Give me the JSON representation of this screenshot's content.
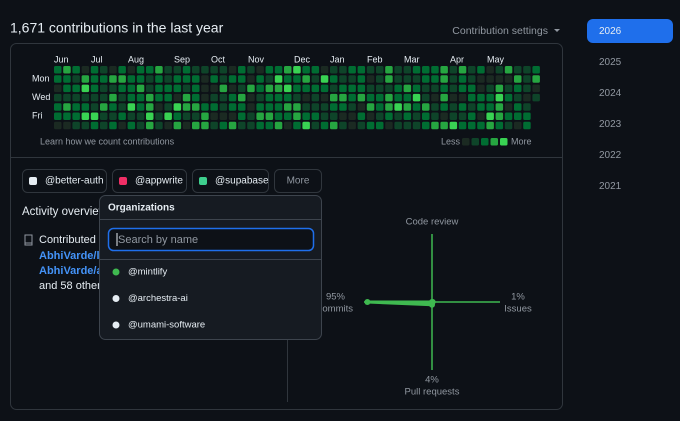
{
  "header": {
    "title": "1,671 contributions in the last year",
    "settings": "Contribution settings"
  },
  "years": [
    "2026",
    "2025",
    "2024",
    "2023",
    "2022",
    "2021"
  ],
  "selected_year": "2026",
  "calendar": {
    "months": [
      "Jun",
      "Jul",
      "Aug",
      "Sep",
      "Oct",
      "Nov",
      "Dec",
      "Jan",
      "Feb",
      "Mar",
      "Apr",
      "May"
    ],
    "days": [
      "Mon",
      "Wed",
      "Fri"
    ],
    "footer": "Learn how we count contributions",
    "legend_less": "Less",
    "legend_more": "More"
  },
  "organizations": [
    "@better-auth",
    "@appwrite",
    "@supabase"
  ],
  "more_button": "More",
  "activity": {
    "title": "Activity overview",
    "contributed": "Contributed",
    "repos": [
      "AbhiVarde/lo",
      "AbhiVarde/a"
    ],
    "others": "and 58 other",
    "axes": {
      "code_review": {
        "label": "Code review",
        "percent": 0
      },
      "commits": {
        "label": "Commits",
        "percent": 95,
        "percent_label": "95%"
      },
      "issues": {
        "label": "Issues",
        "percent": 1,
        "percent_label": "1%"
      },
      "pull_requests": {
        "label": "Pull requests",
        "percent": 4,
        "percent_label": "4%"
      }
    }
  },
  "dropdown": {
    "title": "Organizations",
    "placeholder": "Search by name",
    "items": [
      "@mintlify",
      "@archestra-ai",
      "@umami-software"
    ]
  }
}
